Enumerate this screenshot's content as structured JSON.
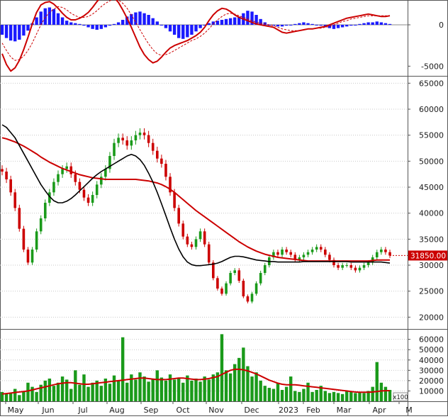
{
  "chart_data": [
    {
      "panel": "macd",
      "type": "bar",
      "y_ticks": [
        "0",
        "-5000"
      ],
      "colors": {
        "histogram": "#1a1aff",
        "macd": "#cc0000",
        "signal": "#cc0000"
      },
      "histogram": [
        -1200,
        -1600,
        -1900,
        -2000,
        -1800,
        -1300,
        -700,
        200,
        900,
        1600,
        2000,
        2100,
        1900,
        1400,
        900,
        500,
        300,
        200,
        100,
        -100,
        -300,
        -500,
        -600,
        -500,
        -300,
        -100,
        100,
        300,
        600,
        1000,
        1300,
        1500,
        1600,
        1400,
        1200,
        800,
        400,
        0,
        -400,
        -800,
        -1200,
        -1600,
        -1700,
        -1500,
        -1200,
        -800,
        -400,
        -100,
        200,
        400,
        500,
        600,
        700,
        800,
        900,
        1000,
        1400,
        1700,
        1600,
        1200,
        700,
        300,
        0,
        -100,
        -200,
        -200,
        -100,
        0,
        100,
        200,
        300,
        200,
        100,
        0,
        -100,
        -300,
        -400,
        -500,
        -400,
        -300,
        -200,
        -100,
        0,
        100,
        200,
        300,
        300,
        400,
        300,
        200,
        100
      ],
      "macd": [
        -3500,
        -4800,
        -5600,
        -5200,
        -4300,
        -3000,
        -1500,
        100,
        1500,
        2400,
        2700,
        2800,
        2500,
        2000,
        1400,
        900,
        600,
        600,
        800,
        1100,
        1500,
        2100,
        2800,
        3400,
        3700,
        3600,
        3300,
        2700,
        1800,
        800,
        -300,
        -1500,
        -2700,
        -3600,
        -4200,
        -4600,
        -4400,
        -3900,
        -3300,
        -2800,
        -2500,
        -2300,
        -2100,
        -1900,
        -1600,
        -1300,
        -900,
        -300,
        500,
        1200,
        1700,
        2000,
        1900,
        1600,
        1200,
        900,
        700,
        500,
        300,
        100,
        0,
        -100,
        -200,
        -300,
        -600,
        -900,
        -1000,
        -900,
        -800,
        -700,
        -600,
        -500,
        -500,
        -400,
        -300,
        -200,
        0,
        200,
        400,
        600,
        800,
        900,
        1000,
        1100,
        1200,
        1300,
        1200,
        1100,
        1000,
        1000,
        1100
      ],
      "signal": [
        -2200,
        -3100,
        -3900,
        -4300,
        -4200,
        -3800,
        -3100,
        -2200,
        -1100,
        0,
        900,
        1500,
        1900,
        2200,
        2100,
        1800,
        1400,
        1100,
        900,
        900,
        1000,
        1300,
        1700,
        2200,
        2600,
        2900,
        3100,
        3000,
        2600,
        2000,
        1200,
        300,
        -600,
        -1500,
        -2300,
        -3000,
        -3500,
        -3700,
        -3600,
        -3400,
        -3100,
        -2800,
        -2500,
        -2200,
        -1900,
        -1700,
        -1400,
        -1000,
        -500,
        100,
        600,
        1000,
        1300,
        1400,
        1300,
        1100,
        900,
        700,
        500,
        300,
        200,
        100,
        0,
        -100,
        -300,
        -500,
        -600,
        -700,
        -700,
        -700,
        -600,
        -500,
        -500,
        -400,
        -400,
        -300,
        -200,
        0,
        200,
        400,
        500,
        700,
        800,
        900,
        1000,
        1100,
        1100,
        1100,
        1100,
        1100,
        1100
      ],
      "ylim": [
        -6000,
        3000
      ]
    },
    {
      "panel": "price",
      "type": "line",
      "y_ticks": [
        "65000",
        "60000",
        "55000",
        "50000",
        "45000",
        "40000",
        "35000",
        "30000",
        "25000",
        "20000"
      ],
      "ylim": [
        18000,
        66000
      ],
      "last_price_label": "31850.00",
      "colors": {
        "up": "#1a9a1a",
        "down": "#cc0000",
        "ma_long": "#cc0000",
        "ma_short": "#000000",
        "label_bg": "#cc0000"
      },
      "close": [
        48000,
        46500,
        44000,
        41000,
        37000,
        33000,
        30500,
        33000,
        36500,
        39000,
        42000,
        44000,
        46000,
        47500,
        48500,
        49000,
        47500,
        46000,
        44500,
        43000,
        42000,
        43500,
        45500,
        47000,
        48500,
        51000,
        53500,
        54500,
        54000,
        53000,
        54000,
        55000,
        55500,
        55000,
        53500,
        52000,
        50500,
        49500,
        47000,
        44000,
        41000,
        38000,
        35500,
        34000,
        33500,
        35000,
        36500,
        34000,
        30500,
        27500,
        25500,
        24500,
        26500,
        28500,
        29000,
        27000,
        24000,
        23000,
        24500,
        26500,
        28500,
        30000,
        31500,
        32500,
        32000,
        33000,
        32500,
        32000,
        31000,
        31500,
        32000,
        32500,
        33000,
        33500,
        33000,
        32000,
        31000,
        30000,
        29500,
        30000,
        30000,
        29500,
        29000,
        29500,
        30000,
        30500,
        31500,
        32500,
        33000,
        32500,
        31850
      ],
      "ma_long": [
        54500,
        54300,
        54000,
        53700,
        53300,
        52900,
        52400,
        51900,
        51400,
        50800,
        50300,
        49800,
        49400,
        49000,
        48600,
        48300,
        48000,
        47700,
        47400,
        47200,
        47000,
        46800,
        46700,
        46600,
        46500,
        46500,
        46500,
        46500,
        46500,
        46500,
        46500,
        46500,
        46400,
        46300,
        46200,
        46000,
        45800,
        45500,
        45100,
        44600,
        44000,
        43300,
        42600,
        41900,
        41200,
        40500,
        39900,
        39300,
        38700,
        38100,
        37500,
        36900,
        36300,
        35700,
        35100,
        34500,
        34000,
        33500,
        33100,
        32700,
        32400,
        32100,
        31900,
        31700,
        31500,
        31400,
        31300,
        31200,
        31100,
        31000,
        30900,
        30800,
        30800,
        30800,
        30800,
        30800,
        30800,
        30800,
        30800,
        30800,
        30800,
        30800,
        30800,
        30800,
        30800,
        30800,
        30900,
        31000,
        31000,
        31000,
        31000
      ],
      "ma_short": [
        57000,
        56500,
        55500,
        54500,
        53000,
        51500,
        50000,
        48500,
        47000,
        45500,
        44300,
        43200,
        42400,
        42000,
        42000,
        42300,
        42800,
        43500,
        44300,
        45100,
        45900,
        46700,
        47400,
        48000,
        48500,
        49000,
        49500,
        50000,
        50500,
        51000,
        51300,
        51000,
        50300,
        49200,
        47700,
        46000,
        44000,
        41800,
        39500,
        37200,
        35000,
        33100,
        31600,
        30600,
        30100,
        29900,
        29900,
        30000,
        30100,
        30200,
        30400,
        30700,
        31100,
        31500,
        31700,
        31700,
        31600,
        31400,
        31200,
        31000,
        30900,
        30800,
        30700,
        30700,
        30600,
        30600,
        30600,
        30600,
        30600,
        30600,
        30700,
        30700,
        30700,
        30700,
        30700,
        30700,
        30700,
        30700,
        30700,
        30700,
        30700,
        30600,
        30600,
        30600,
        30600,
        30600,
        30600,
        30600,
        30600,
        30500,
        30400
      ]
    },
    {
      "panel": "volume",
      "type": "bar",
      "y_ticks": [
        "60000",
        "50000",
        "40000",
        "30000",
        "20000",
        "10000"
      ],
      "unit_label": "x100",
      "ylim": [
        0,
        68000
      ],
      "colors": {
        "up": "#1a9a1a",
        "down": "#cc0000",
        "average": "#cc0000"
      },
      "values": [
        9000,
        7000,
        8000,
        12000,
        6000,
        10000,
        18000,
        14000,
        9000,
        16000,
        20000,
        22000,
        15000,
        18000,
        24000,
        21000,
        12000,
        30000,
        16000,
        26000,
        14000,
        18000,
        20000,
        15000,
        22000,
        17000,
        25000,
        20000,
        62000,
        18000,
        26000,
        21000,
        28000,
        24000,
        19000,
        22000,
        30000,
        23000,
        20000,
        26000,
        21000,
        23000,
        18000,
        25000,
        20000,
        22000,
        19000,
        24000,
        21000,
        26000,
        28000,
        65000,
        30000,
        27000,
        36000,
        42000,
        52000,
        34000,
        24000,
        28000,
        20000,
        15000,
        13000,
        12000,
        18000,
        11000,
        14000,
        24000,
        10000,
        9000,
        12000,
        18000,
        9000,
        11000,
        15000,
        10000,
        8000,
        9000,
        8000,
        7000,
        10000,
        9000,
        8000,
        9000,
        8000,
        10000,
        14000,
        38000,
        18000,
        14000,
        11000
      ],
      "average": [
        7000,
        7500,
        8000,
        8500,
        9000,
        9500,
        10000,
        11000,
        12000,
        13000,
        14000,
        15000,
        16000,
        17000,
        17500,
        18000,
        18000,
        17500,
        17000,
        16500,
        16500,
        17000,
        17500,
        18000,
        18500,
        19000,
        19500,
        20000,
        20500,
        21000,
        21500,
        22000,
        22500,
        22500,
        22000,
        21500,
        21000,
        21000,
        21000,
        21500,
        22000,
        22500,
        22500,
        22000,
        21500,
        21000,
        21000,
        21500,
        22000,
        23000,
        24000,
        26000,
        28000,
        30000,
        31000,
        31000,
        30500,
        29500,
        28000,
        26500,
        24500,
        22500,
        20500,
        19000,
        17500,
        16500,
        16000,
        16000,
        16000,
        15500,
        15000,
        14500,
        14000,
        13500,
        13000,
        12500,
        12000,
        11500,
        11000,
        10500,
        10000,
        9500,
        9000,
        8800,
        8700,
        8800,
        9000,
        9500,
        10000,
        10200,
        10300
      ]
    },
    {
      "panel": "x-axis",
      "type": "line",
      "x_labels": [
        "May",
        "Jun",
        "Jul",
        "Aug",
        "Sep",
        "Oct",
        "Nov",
        "Dec",
        "2023",
        "Feb",
        "Mar",
        "Apr",
        "M"
      ]
    }
  ]
}
